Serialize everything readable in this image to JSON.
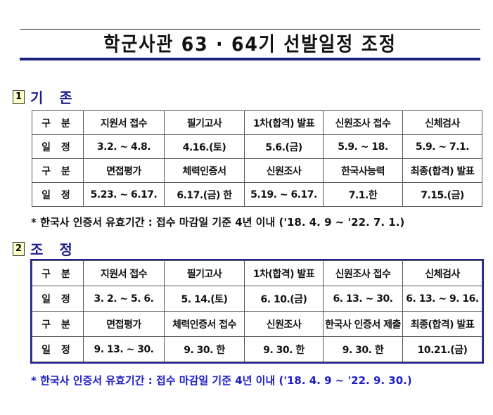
{
  "title": "학군사관 63 · 64기 선발일정 조정",
  "sections": [
    {
      "num": "1",
      "label": "기 존",
      "rows": [
        [
          "구 분",
          "지원서 접수",
          "필기고사",
          "1차(합격) 발표",
          "신원조사 접수",
          "신체검사"
        ],
        [
          "일 정",
          "3.2. ~ 4.8.",
          "4.16.(토)",
          "5.6.(금)",
          "5.9. ~ 18.",
          "5.9. ~ 7.1."
        ],
        [
          "구 분",
          "면접평가",
          "체력인증서",
          "신원조사",
          "한국사능력",
          "최종(합격) 발표"
        ],
        [
          "일 정",
          "5.23. ~ 6.17.",
          "6.17.(금) 한",
          "5.19. ~ 6.17.",
          "7.1.한",
          "7.15.(금)"
        ]
      ],
      "note": "*  한국사 인증서 유효기간 : 접수 마감일 기준 4년 이내 ('18. 4. 9 ~ '22. 7. 1.)"
    },
    {
      "num": "2",
      "label": "조 정",
      "rows": [
        [
          "구 분",
          "지원서 접수",
          "필기고사",
          "1차(합격) 발표",
          "신원조사 접수",
          "신체검사"
        ],
        [
          "일 정",
          "3. 2. ~ 5. 6.",
          "5. 14.(토)",
          "6. 10.(금)",
          "6. 13. ~ 30.",
          "6. 13. ~ 9. 16."
        ],
        [
          "구 분",
          "면접평가",
          "체력인증서 접수",
          "신원조사",
          "한국사 인증서 제출",
          "최종(합격) 발표"
        ],
        [
          "일 정",
          "9. 13. ~ 30.",
          "9. 30. 한",
          "9. 30. 한",
          "9. 30. 한",
          "10.21.(금)"
        ]
      ],
      "note": "*  한국사 인증서 유효기간 : 접수 마감일 기준 4년 이내 ('18. 4. 9 ~ '22. 9. 30.)"
    }
  ],
  "colors": {
    "heading": "#1c1c8c",
    "note2": "#1c1cc8",
    "table2_border": "#2323a0"
  }
}
